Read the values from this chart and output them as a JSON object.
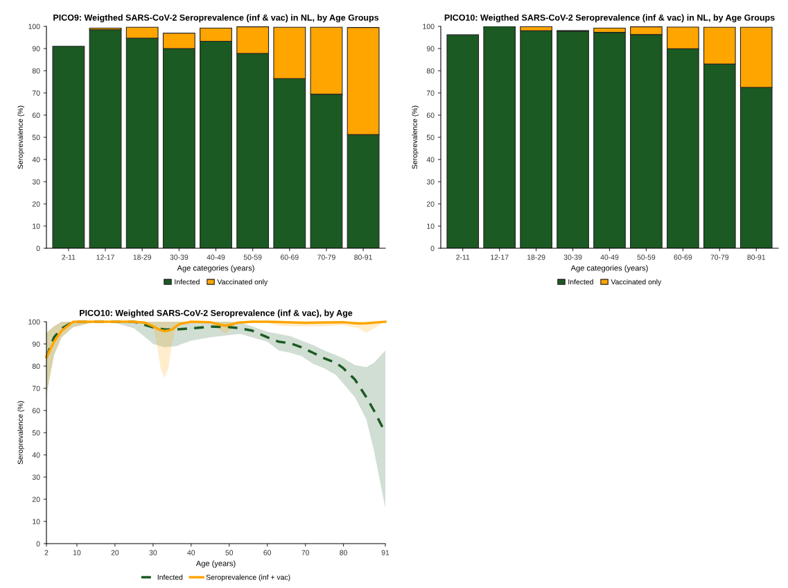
{
  "chart_data": [
    {
      "type": "bar",
      "title": "PICO9: Weigthed SARS-CoV-2 Seroprevalence (inf & vac) in NL, by Age Groups",
      "xlabel": "Age categories (years)",
      "ylabel": "Seroprevalence (%)",
      "categories": [
        "2-11",
        "12-17",
        "18-29",
        "30-39",
        "40-49",
        "50-59",
        "60-69",
        "70-79",
        "80-91"
      ],
      "stacked": true,
      "ylim": [
        0,
        100
      ],
      "yticks": [
        0,
        10,
        20,
        30,
        40,
        50,
        60,
        70,
        80,
        90,
        100
      ],
      "grid": false,
      "legend": "bottom",
      "series": [
        {
          "name": "Infected",
          "color": "#1b5a22",
          "values": [
            91,
            98.5,
            94.7,
            90,
            93.3,
            87.8,
            76.5,
            69.4,
            51.2
          ]
        },
        {
          "name": "Vaccinated only",
          "color": "#ffa500",
          "values": [
            0,
            0.7,
            4.9,
            6.9,
            5.9,
            12,
            23.1,
            30.2,
            48.3
          ]
        }
      ]
    },
    {
      "type": "bar",
      "title": "PICO10: Weigthed SARS-CoV-2 Seroprevalence (inf & vac) in NL, by Age Groups",
      "xlabel": "Age categories (years)",
      "ylabel": "Seroprevalence (%)",
      "categories": [
        "2-11",
        "12-17",
        "18-29",
        "30-39",
        "40-49",
        "50-59",
        "60-69",
        "70-79",
        "80-91"
      ],
      "stacked": true,
      "ylim": [
        0,
        100
      ],
      "yticks": [
        0,
        10,
        20,
        30,
        40,
        50,
        60,
        70,
        80,
        90,
        100
      ],
      "grid": false,
      "legend": "bottom",
      "series": [
        {
          "name": "Infected",
          "color": "#1b5a22",
          "values": [
            96.2,
            100,
            98,
            97.8,
            97.3,
            96.3,
            89.9,
            83,
            72.5
          ]
        },
        {
          "name": "Vaccinated only",
          "color": "#ffa500",
          "values": [
            0,
            0,
            1.9,
            0.3,
            1.9,
            3.5,
            9.8,
            16.6,
            27.1
          ]
        }
      ]
    },
    {
      "type": "line",
      "title": "PICO10: Weighted SARS-CoV-2 Seroprevalence (inf & vac), by Age",
      "xlabel": "Age (years)",
      "ylabel": "Seroprevalence (%)",
      "xlim": [
        2,
        91
      ],
      "xticks": [
        2,
        10,
        20,
        30,
        40,
        50,
        60,
        70,
        80,
        91
      ],
      "ylim": [
        0,
        100
      ],
      "yticks": [
        0,
        10,
        20,
        30,
        40,
        50,
        60,
        70,
        80,
        90,
        100
      ],
      "grid": false,
      "legend": "bottom",
      "marker": "none",
      "series": [
        {
          "name": "Infected",
          "color": "#1b5a22",
          "line_style": "dashed",
          "x": [
            2,
            4,
            6,
            9,
            15,
            20,
            25,
            28,
            30,
            33,
            36,
            40,
            45,
            50,
            53,
            56,
            60,
            63,
            66,
            69,
            72,
            75,
            78,
            80,
            83,
            86,
            88,
            91
          ],
          "values": [
            84,
            93,
            97,
            100,
            100,
            100,
            100,
            98.5,
            97.5,
            96.5,
            96.5,
            97,
            97.8,
            97.6,
            97,
            96,
            93,
            91,
            90.3,
            88.5,
            86,
            83.5,
            81.5,
            79,
            74,
            66,
            60,
            50
          ],
          "lower": [
            67,
            85,
            93,
            97.5,
            100,
            99.5,
            97,
            93,
            90,
            88.5,
            89,
            91.5,
            93,
            94,
            94.5,
            93,
            91,
            87,
            86,
            84.5,
            81,
            79,
            76,
            72,
            66,
            56,
            42,
            16
          ],
          "upper": [
            95,
            98,
            100,
            100,
            100,
            100,
            100,
            100,
            100,
            100,
            100,
            100,
            100,
            100,
            99.5,
            98,
            95.5,
            94.5,
            93.5,
            91.5,
            89.5,
            87,
            85,
            83.5,
            80.5,
            79.5,
            81.5,
            87
          ]
        },
        {
          "name": "Seroprevalence (inf + vac)",
          "color": "#ffa500",
          "line_style": "solid",
          "x": [
            2,
            4,
            6,
            9,
            15,
            20,
            25,
            28,
            30,
            31,
            32,
            33,
            34,
            35,
            36,
            37,
            40,
            45,
            48,
            49,
            50,
            52,
            56,
            60,
            62,
            65,
            70,
            75,
            80,
            84,
            86,
            88,
            91
          ],
          "values": [
            84,
            91,
            96,
            100,
            100,
            100,
            100,
            99.5,
            98,
            97,
            96.2,
            95.8,
            96,
            96.5,
            97.8,
            99,
            100,
            99.8,
            98.5,
            98.2,
            98.5,
            99.5,
            100,
            100,
            99.9,
            99.8,
            99.5,
            99.7,
            99.8,
            99.2,
            99.3,
            99.6,
            100
          ],
          "lower": [
            67,
            85,
            93,
            97.5,
            100,
            100,
            100,
            99.5,
            98,
            90,
            79,
            74.5,
            79,
            90,
            98,
            99.5,
            100,
            99.5,
            96,
            94.5,
            96,
            99.5,
            100,
            99.5,
            98.5,
            98,
            98,
            98,
            98.5,
            97,
            95,
            97,
            100
          ],
          "upper": [
            95,
            98,
            100,
            100,
            100,
            100,
            100,
            100,
            100,
            100,
            100,
            100,
            100,
            100,
            100,
            100,
            100,
            100,
            100,
            100,
            100,
            100,
            100,
            100,
            100,
            100,
            100,
            100,
            100,
            100,
            100,
            100,
            100
          ]
        }
      ]
    }
  ]
}
